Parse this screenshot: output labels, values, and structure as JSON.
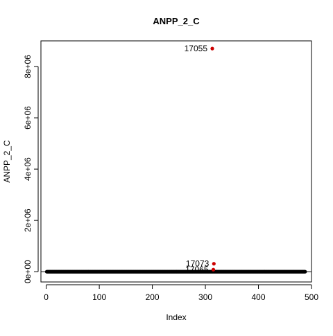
{
  "chart_data": {
    "type": "scatter",
    "title": "ANPP_2_C",
    "xlabel": "Index",
    "ylabel": "ANPP_2_C",
    "xlim": [
      -10,
      500
    ],
    "ylim": [
      -400000,
      9000000
    ],
    "x_ticks": [
      0,
      100,
      200,
      300,
      400,
      500
    ],
    "x_tick_labels": [
      "0",
      "100",
      "200",
      "300",
      "400",
      "500"
    ],
    "y_ticks": [
      0,
      2000000,
      4000000,
      6000000,
      8000000
    ],
    "y_tick_labels": [
      "0e+00",
      "2e+06",
      "4e+06",
      "6e+06",
      "8e+06"
    ],
    "grid": false,
    "reference_line_y": 0,
    "background_points": {
      "x_start": 1,
      "x_end": 488,
      "approx_value": 0,
      "color": "#000000"
    },
    "outliers": [
      {
        "label": "17055",
        "x": 313,
        "y": 8700000,
        "color": "#cc0000"
      },
      {
        "label": "17073",
        "x": 316,
        "y": 310000,
        "color": "#cc0000"
      },
      {
        "label": "17065",
        "x": 315,
        "y": 80000,
        "color": "#cc0000"
      }
    ]
  }
}
